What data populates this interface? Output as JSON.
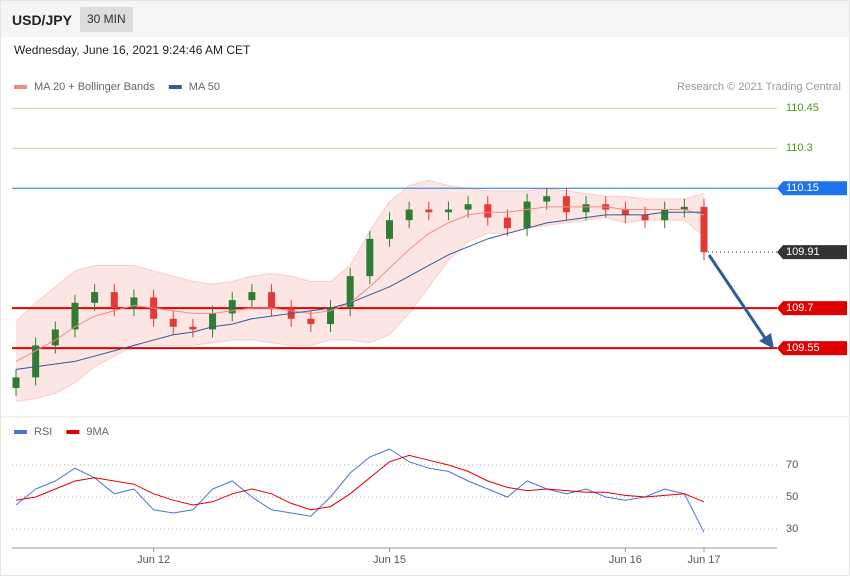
{
  "header": {
    "symbol": "USD/JPY",
    "interval": "30 MIN",
    "timestamp": "Wednesday, June 16, 2021 9:24:46 AM CET",
    "copyright": "Research © 2021 Trading Central"
  },
  "chart_data": [
    {
      "type": "candlestick",
      "categories": [
        null,
        null,
        null,
        null,
        null,
        null,
        null,
        "Jun 12",
        null,
        null,
        null,
        null,
        null,
        null,
        null,
        null,
        null,
        null,
        null,
        "Jun 15",
        null,
        null,
        null,
        null,
        null,
        null,
        null,
        null,
        null,
        null,
        null,
        "Jun 16",
        null,
        null,
        null,
        "Jun 17"
      ],
      "open": [
        109.4,
        109.44,
        109.56,
        109.62,
        109.72,
        109.76,
        109.7,
        109.74,
        109.66,
        109.63,
        109.62,
        109.68,
        109.73,
        109.76,
        109.7,
        109.66,
        109.64,
        109.7,
        109.82,
        109.96,
        110.03,
        110.07,
        110.06,
        110.07,
        110.09,
        110.04,
        110.0,
        110.1,
        110.12,
        110.06,
        110.09,
        110.07,
        110.05,
        110.03,
        110.07,
        110.08
      ],
      "high": [
        109.47,
        109.59,
        109.65,
        109.75,
        109.79,
        109.79,
        109.77,
        109.77,
        109.69,
        109.66,
        109.71,
        109.76,
        109.79,
        109.79,
        109.73,
        109.69,
        109.73,
        109.85,
        109.99,
        110.06,
        110.1,
        110.1,
        110.1,
        110.12,
        110.12,
        110.07,
        110.13,
        110.15,
        110.15,
        110.12,
        110.12,
        110.1,
        110.08,
        110.1,
        110.11,
        110.11
      ],
      "low": [
        109.37,
        109.41,
        109.53,
        109.59,
        109.69,
        109.67,
        109.67,
        109.63,
        109.6,
        109.59,
        109.59,
        109.65,
        109.7,
        109.67,
        109.63,
        109.61,
        109.61,
        109.67,
        109.79,
        109.93,
        110.0,
        110.03,
        110.03,
        110.04,
        110.01,
        109.97,
        109.97,
        110.07,
        110.03,
        110.03,
        110.04,
        110.02,
        110.0,
        110.0,
        110.04,
        109.88
      ],
      "close": [
        109.44,
        109.56,
        109.62,
        109.72,
        109.76,
        109.7,
        109.74,
        109.66,
        109.63,
        109.62,
        109.68,
        109.73,
        109.76,
        109.7,
        109.66,
        109.64,
        109.7,
        109.82,
        109.96,
        110.03,
        110.07,
        110.06,
        110.07,
        110.09,
        110.04,
        110.0,
        110.1,
        110.12,
        110.06,
        110.09,
        110.07,
        110.05,
        110.03,
        110.07,
        110.08,
        109.91
      ],
      "up_color": "#2e7d32",
      "down_color": "#e53935",
      "ylim": [
        109.31,
        110.5
      ],
      "series": [
        {
          "name": "MA 20 + Bollinger Bands",
          "color": "#f28b82",
          "values": [
            109.5,
            109.54,
            109.58,
            109.63,
            109.67,
            109.69,
            109.71,
            109.7,
            109.69,
            109.68,
            109.68,
            109.69,
            109.7,
            109.7,
            109.69,
            109.68,
            109.69,
            109.72,
            109.78,
            109.85,
            109.92,
            109.98,
            110.02,
            110.05,
            110.06,
            110.06,
            110.07,
            110.08,
            110.08,
            110.08,
            110.08,
            110.07,
            110.07,
            110.07,
            110.07,
            110.05
          ],
          "upper": [
            109.65,
            109.72,
            109.78,
            109.84,
            109.86,
            109.86,
            109.86,
            109.84,
            109.82,
            109.8,
            109.79,
            109.8,
            109.82,
            109.83,
            109.82,
            109.8,
            109.8,
            109.86,
            109.99,
            110.1,
            110.16,
            110.18,
            110.16,
            110.15,
            110.14,
            110.14,
            110.14,
            110.15,
            110.14,
            110.13,
            110.12,
            110.12,
            110.11,
            110.11,
            110.11,
            110.13
          ],
          "lower": [
            109.35,
            109.36,
            109.38,
            109.42,
            109.48,
            109.52,
            109.56,
            109.56,
            109.56,
            109.56,
            109.57,
            109.58,
            109.58,
            109.57,
            109.56,
            109.56,
            109.58,
            109.58,
            109.57,
            109.6,
            109.68,
            109.78,
            109.88,
            109.95,
            109.98,
            109.98,
            110.0,
            110.01,
            110.02,
            110.03,
            110.04,
            110.02,
            110.03,
            110.03,
            110.03,
            109.97
          ]
        },
        {
          "name": "MA 50",
          "color": "#2f5d9a",
          "values": [
            109.47,
            109.48,
            109.49,
            109.5,
            109.52,
            109.54,
            109.56,
            109.58,
            109.6,
            109.61,
            109.63,
            109.64,
            109.66,
            109.67,
            109.68,
            109.69,
            109.7,
            109.72,
            109.75,
            109.78,
            109.82,
            109.86,
            109.9,
            109.93,
            109.96,
            109.98,
            110.0,
            110.02,
            110.03,
            110.04,
            110.05,
            110.05,
            110.05,
            110.06,
            110.06,
            110.06
          ]
        }
      ],
      "levels": [
        {
          "value": 110.45,
          "color": "#8bc34a",
          "style": "solid-green"
        },
        {
          "value": 110.3,
          "color": "#8bc34a",
          "style": "solid-green"
        },
        {
          "value": 110.15,
          "color": "#1e74e8",
          "style": "tag"
        },
        {
          "value": 109.91,
          "color": "#333333",
          "style": "dotted-tag"
        },
        {
          "value": 109.7,
          "color": "#e00000",
          "style": "tag-thick"
        },
        {
          "value": 109.55,
          "color": "#e00000",
          "style": "tag-thick"
        }
      ]
    },
    {
      "type": "line",
      "ylim": [
        20,
        90
      ],
      "yticks": [
        30,
        50,
        70
      ],
      "grid": true,
      "series": [
        {
          "name": "RSI",
          "color": "#4a74d4",
          "values": [
            45,
            55,
            60,
            68,
            62,
            52,
            55,
            42,
            40,
            42,
            55,
            60,
            50,
            42,
            40,
            38,
            50,
            65,
            75,
            80,
            72,
            68,
            66,
            60,
            55,
            50,
            60,
            55,
            52,
            55,
            50,
            48,
            50,
            55,
            52,
            28
          ]
        },
        {
          "name": "9MA",
          "color": "#e00000",
          "values": [
            48,
            50,
            55,
            60,
            62,
            60,
            58,
            52,
            48,
            45,
            47,
            52,
            55,
            52,
            46,
            42,
            44,
            52,
            62,
            72,
            76,
            73,
            70,
            66,
            60,
            56,
            54,
            55,
            54,
            53,
            53,
            51,
            50,
            51,
            52,
            47
          ]
        }
      ]
    }
  ]
}
